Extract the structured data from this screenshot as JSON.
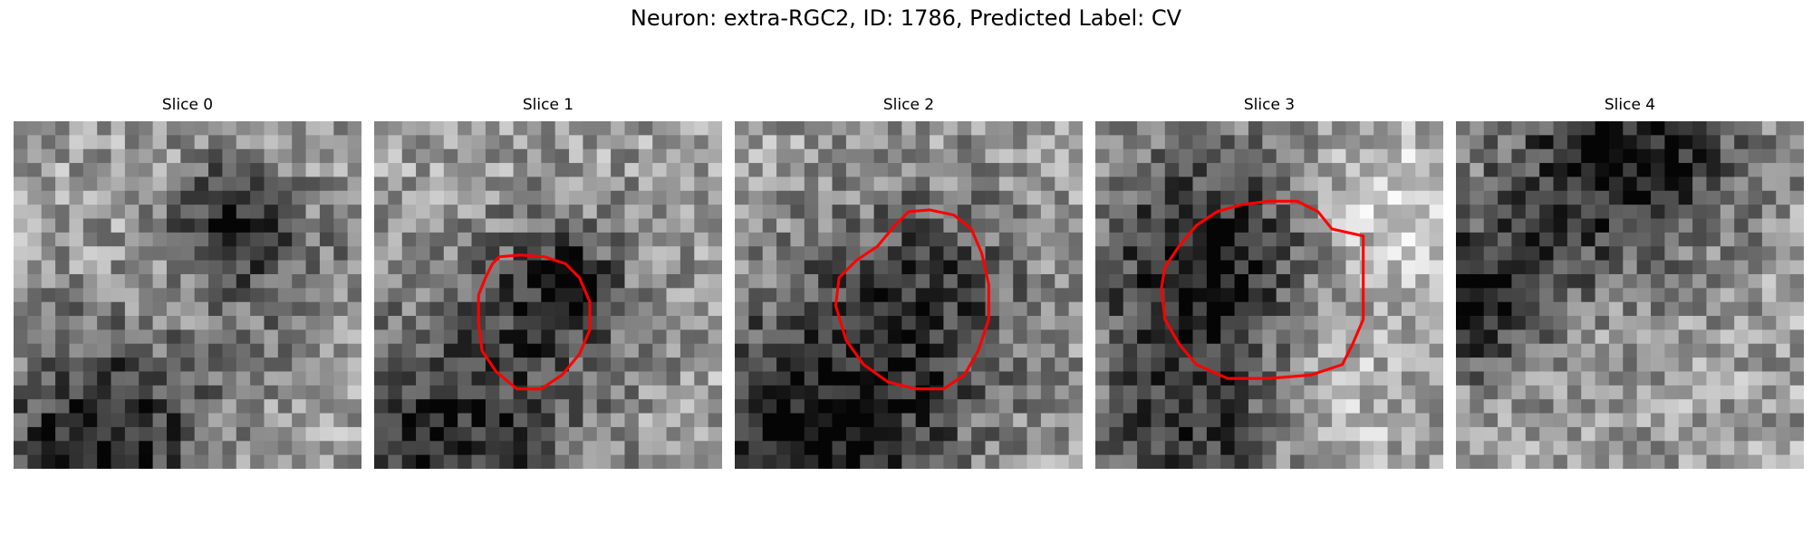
{
  "figure": {
    "title": "Neuron: extra-RGC2, ID: 1786, Predicted Label: CV",
    "contour_color": "#ff0000",
    "grid_size": 25,
    "slices": [
      {
        "label": "Slice 0",
        "seed": 11,
        "has_contour": false,
        "dark_spots": [
          [
            0.25,
            0.92,
            0.22,
            -0.55
          ],
          [
            0.62,
            0.28,
            0.12,
            -0.45
          ],
          [
            0.8,
            0.45,
            0.15,
            -0.2
          ]
        ],
        "contour": []
      },
      {
        "label": "Slice 1",
        "seed": 23,
        "has_contour": true,
        "dark_spots": [
          [
            0.52,
            0.5,
            0.17,
            -0.38
          ],
          [
            0.58,
            0.45,
            0.05,
            -0.45
          ],
          [
            0.2,
            0.95,
            0.25,
            -0.5
          ]
        ],
        "contour": [
          [
            0.34,
            0.41
          ],
          [
            0.36,
            0.39
          ],
          [
            0.42,
            0.385
          ],
          [
            0.49,
            0.39
          ],
          [
            0.55,
            0.41
          ],
          [
            0.59,
            0.45
          ],
          [
            0.62,
            0.52
          ],
          [
            0.62,
            0.6
          ],
          [
            0.59,
            0.67
          ],
          [
            0.54,
            0.73
          ],
          [
            0.48,
            0.77
          ],
          [
            0.41,
            0.77
          ],
          [
            0.35,
            0.72
          ],
          [
            0.31,
            0.66
          ],
          [
            0.3,
            0.58
          ],
          [
            0.3,
            0.5
          ],
          [
            0.32,
            0.45
          ]
        ]
      },
      {
        "label": "Slice 2",
        "seed": 37,
        "has_contour": true,
        "dark_spots": [
          [
            0.55,
            0.5,
            0.22,
            -0.35
          ],
          [
            0.2,
            0.95,
            0.3,
            -0.55
          ]
        ],
        "contour": [
          [
            0.46,
            0.3
          ],
          [
            0.5,
            0.26
          ],
          [
            0.56,
            0.255
          ],
          [
            0.63,
            0.27
          ],
          [
            0.68,
            0.31
          ],
          [
            0.71,
            0.38
          ],
          [
            0.73,
            0.47
          ],
          [
            0.73,
            0.57
          ],
          [
            0.7,
            0.66
          ],
          [
            0.66,
            0.73
          ],
          [
            0.6,
            0.77
          ],
          [
            0.52,
            0.77
          ],
          [
            0.44,
            0.75
          ],
          [
            0.37,
            0.7
          ],
          [
            0.32,
            0.63
          ],
          [
            0.29,
            0.53
          ],
          [
            0.3,
            0.45
          ],
          [
            0.35,
            0.4
          ],
          [
            0.41,
            0.36
          ]
        ]
      },
      {
        "label": "Slice 3",
        "seed": 53,
        "has_contour": true,
        "dark_spots": [
          [
            0.32,
            0.4,
            0.22,
            -0.55
          ],
          [
            0.3,
            0.92,
            0.22,
            -0.45
          ],
          [
            0.9,
            0.3,
            0.18,
            0.25
          ],
          [
            0.6,
            0.85,
            0.2,
            0.2
          ]
        ],
        "contour": [
          [
            0.24,
            0.36
          ],
          [
            0.29,
            0.3
          ],
          [
            0.35,
            0.26
          ],
          [
            0.42,
            0.24
          ],
          [
            0.5,
            0.23
          ],
          [
            0.58,
            0.23
          ],
          [
            0.64,
            0.26
          ],
          [
            0.68,
            0.31
          ],
          [
            0.77,
            0.33
          ],
          [
            0.77,
            0.45
          ],
          [
            0.77,
            0.57
          ],
          [
            0.74,
            0.64
          ],
          [
            0.71,
            0.7
          ],
          [
            0.62,
            0.73
          ],
          [
            0.5,
            0.74
          ],
          [
            0.38,
            0.74
          ],
          [
            0.29,
            0.7
          ],
          [
            0.24,
            0.64
          ],
          [
            0.2,
            0.57
          ],
          [
            0.19,
            0.48
          ],
          [
            0.2,
            0.42
          ]
        ]
      },
      {
        "label": "Slice 4",
        "seed": 71,
        "has_contour": false,
        "dark_spots": [
          [
            0.05,
            0.52,
            0.14,
            -0.55
          ],
          [
            0.35,
            0.18,
            0.22,
            -0.35
          ],
          [
            0.6,
            0.05,
            0.2,
            -0.35
          ]
        ],
        "contour": []
      }
    ]
  }
}
